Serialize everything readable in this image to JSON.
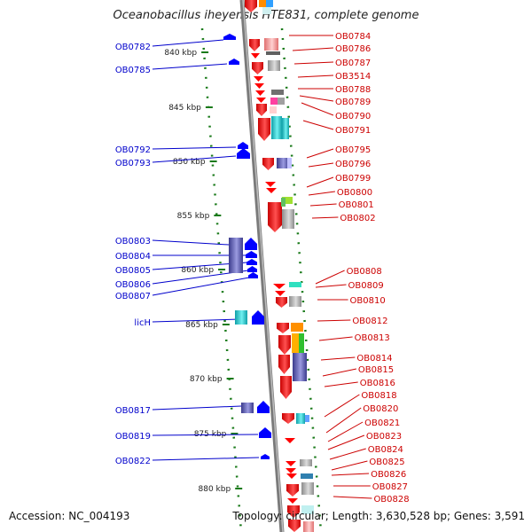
{
  "title": "Oceanobacillus iheyensis HTE831, complete genome",
  "footer": {
    "accession": "Accession: NC_004193",
    "summary": "Topology: circular; Length: 3,630,528 bp; Genes: 3,591"
  },
  "colors": {
    "minus_strand": "#ff0000",
    "plus_strand": "#0000ff",
    "axis": "#8a8a8a",
    "tick": "#1a7a1a",
    "left_label": "#0000cc",
    "right_label": "#cc0000"
  },
  "ruler": {
    "labels": [
      "840 kbp",
      "845 kbp",
      "850 kbp",
      "855 kbp",
      "860 kbp",
      "865 kbp",
      "870 kbp",
      "875 kbp",
      "880 kbp"
    ]
  },
  "left_genes": [
    "OB0782",
    "OB0785",
    "OB0792",
    "OB0793",
    "OB0803",
    "OB0804",
    "OB0805",
    "OB0806",
    "OB0807",
    "licH",
    "OB0817",
    "OB0819",
    "OB0822"
  ],
  "right_genes": [
    "OB0784",
    "OB0786",
    "OB0787",
    "OB3514",
    "OB0788",
    "OB0789",
    "OB0790",
    "OB0791",
    "OB0795",
    "OB0796",
    "OB0799",
    "OB0800",
    "OB0801",
    "OB0802",
    "OB0808",
    "OB0809",
    "OB0810",
    "OB0812",
    "OB0813",
    "OB0814",
    "OB0815",
    "OB0816",
    "OB0818",
    "OB0820",
    "OB0821",
    "OB0823",
    "OB0824",
    "OB0825",
    "OB0826",
    "OB0827",
    "OB0828"
  ]
}
